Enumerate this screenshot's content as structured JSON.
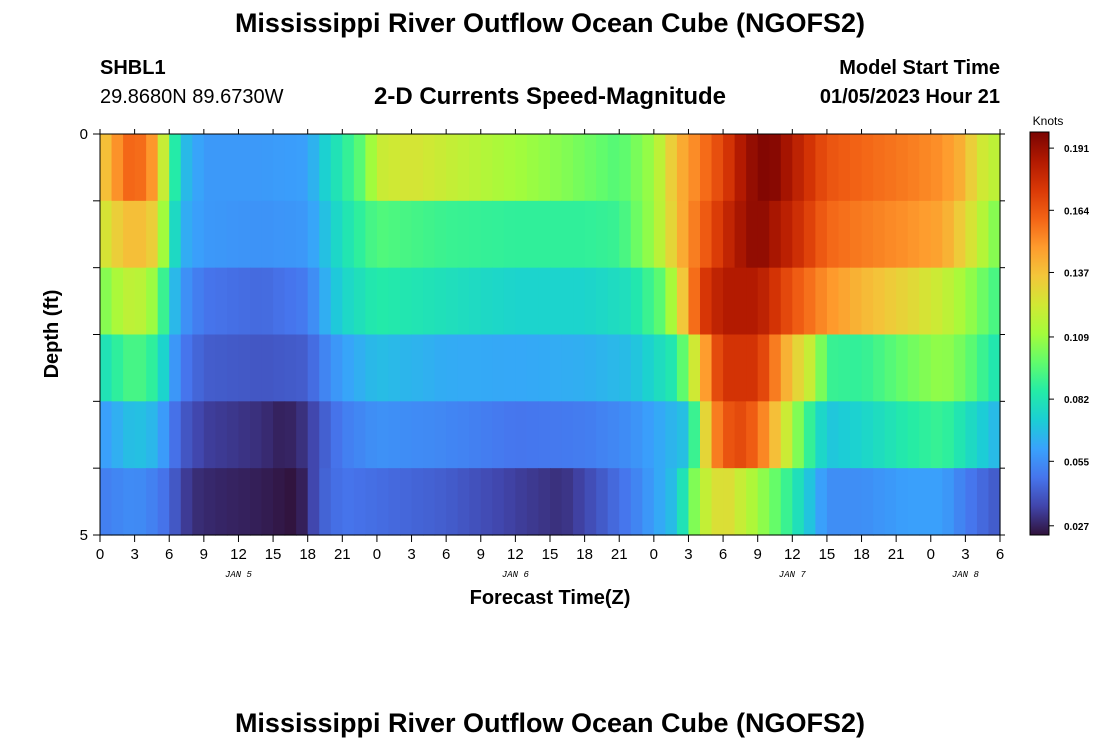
{
  "header": {
    "title": "Mississippi River Outflow Ocean Cube (NGOFS2)",
    "station_id": "SHBL1",
    "coordinates": "29.8680N  89.6730W",
    "chart_title": "2-D Currents Speed-Magnitude",
    "model_start_label": "Model Start Time",
    "model_start_value": "01/05/2023 Hour 21"
  },
  "footer": {
    "title": "Mississippi River Outflow Ocean Cube (NGOFS2)"
  },
  "chart_data": {
    "type": "heatmap",
    "xlabel": "Forecast Time(Z)",
    "ylabel": "Depth (ft)",
    "x_range_hours": [
      0,
      78
    ],
    "x_tick_labels": [
      "0",
      "3",
      "6",
      "9",
      "12",
      "15",
      "18",
      "21",
      "0",
      "3",
      "6",
      "9",
      "12",
      "15",
      "18",
      "21",
      "0",
      "3",
      "6",
      "9",
      "12",
      "15",
      "18",
      "21",
      "0",
      "3",
      "6"
    ],
    "date_labels": [
      {
        "label": "JAN 5",
        "hour": 12
      },
      {
        "label": "JAN 6",
        "hour": 36
      },
      {
        "label": "JAN 7",
        "hour": 60
      },
      {
        "label": "JAN 8",
        "hour": 75
      }
    ],
    "y_range": [
      0,
      5
    ],
    "y_tick_labels": [
      "0",
      "5"
    ],
    "colorbar": {
      "unit": "Knots",
      "min": 0.023,
      "max": 0.198,
      "tick_values": [
        0.191,
        0.164,
        0.137,
        0.109,
        0.082,
        0.055,
        0.027
      ]
    },
    "layer_keypoints": [
      [
        [
          0,
          0.135
        ],
        [
          1,
          0.14
        ],
        [
          2,
          0.16
        ],
        [
          4,
          0.158
        ],
        [
          5,
          0.14
        ],
        [
          6,
          0.1
        ],
        [
          7,
          0.07
        ],
        [
          9,
          0.058
        ],
        [
          14,
          0.058
        ],
        [
          18,
          0.06
        ],
        [
          19,
          0.07
        ],
        [
          21,
          0.085
        ],
        [
          23,
          0.1
        ],
        [
          24,
          0.12
        ],
        [
          27,
          0.125
        ],
        [
          30,
          0.12
        ],
        [
          35,
          0.112
        ],
        [
          40,
          0.105
        ],
        [
          45,
          0.095
        ],
        [
          48,
          0.11
        ],
        [
          50,
          0.14
        ],
        [
          54,
          0.17
        ],
        [
          56,
          0.19
        ],
        [
          58,
          0.198
        ],
        [
          60,
          0.185
        ],
        [
          63,
          0.165
        ],
        [
          66,
          0.16
        ],
        [
          70,
          0.155
        ],
        [
          73,
          0.15
        ],
        [
          75,
          0.14
        ],
        [
          76,
          0.125
        ],
        [
          78,
          0.115
        ]
      ],
      [
        [
          0,
          0.12
        ],
        [
          1,
          0.13
        ],
        [
          3,
          0.14
        ],
        [
          5,
          0.13
        ],
        [
          6,
          0.09
        ],
        [
          7,
          0.065
        ],
        [
          9,
          0.058
        ],
        [
          14,
          0.056
        ],
        [
          18,
          0.058
        ],
        [
          19,
          0.065
        ],
        [
          21,
          0.08
        ],
        [
          24,
          0.095
        ],
        [
          30,
          0.09
        ],
        [
          36,
          0.088
        ],
        [
          42,
          0.088
        ],
        [
          45,
          0.09
        ],
        [
          48,
          0.11
        ],
        [
          51,
          0.15
        ],
        [
          55,
          0.185
        ],
        [
          57,
          0.195
        ],
        [
          60,
          0.18
        ],
        [
          63,
          0.16
        ],
        [
          66,
          0.155
        ],
        [
          70,
          0.15
        ],
        [
          73,
          0.145
        ],
        [
          75,
          0.13
        ],
        [
          78,
          0.1
        ]
      ],
      [
        [
          0,
          0.1
        ],
        [
          1,
          0.11
        ],
        [
          3,
          0.12
        ],
        [
          5,
          0.105
        ],
        [
          6,
          0.075
        ],
        [
          7,
          0.058
        ],
        [
          9,
          0.048
        ],
        [
          14,
          0.045
        ],
        [
          18,
          0.05
        ],
        [
          19,
          0.06
        ],
        [
          21,
          0.075
        ],
        [
          24,
          0.085
        ],
        [
          30,
          0.08
        ],
        [
          36,
          0.075
        ],
        [
          42,
          0.075
        ],
        [
          46,
          0.08
        ],
        [
          49,
          0.1
        ],
        [
          52,
          0.17
        ],
        [
          54,
          0.185
        ],
        [
          57,
          0.185
        ],
        [
          60,
          0.165
        ],
        [
          63,
          0.15
        ],
        [
          66,
          0.14
        ],
        [
          70,
          0.13
        ],
        [
          73,
          0.12
        ],
        [
          75,
          0.11
        ],
        [
          78,
          0.09
        ]
      ],
      [
        [
          0,
          0.078
        ],
        [
          1,
          0.085
        ],
        [
          3,
          0.095
        ],
        [
          5,
          0.085
        ],
        [
          6,
          0.065
        ],
        [
          7,
          0.05
        ],
        [
          9,
          0.042
        ],
        [
          14,
          0.04
        ],
        [
          18,
          0.042
        ],
        [
          19,
          0.05
        ],
        [
          21,
          0.06
        ],
        [
          24,
          0.068
        ],
        [
          30,
          0.063
        ],
        [
          36,
          0.062
        ],
        [
          42,
          0.064
        ],
        [
          46,
          0.068
        ],
        [
          50,
          0.085
        ],
        [
          53,
          0.16
        ],
        [
          54,
          0.175
        ],
        [
          57,
          0.175
        ],
        [
          60,
          0.135
        ],
        [
          62,
          0.115
        ],
        [
          63,
          0.09
        ],
        [
          66,
          0.088
        ],
        [
          70,
          0.1
        ],
        [
          73,
          0.108
        ],
        [
          75,
          0.1
        ],
        [
          78,
          0.08
        ]
      ],
      [
        [
          0,
          0.058
        ],
        [
          1,
          0.062
        ],
        [
          3,
          0.07
        ],
        [
          5,
          0.065
        ],
        [
          6,
          0.052
        ],
        [
          7,
          0.042
        ],
        [
          9,
          0.034
        ],
        [
          14,
          0.03
        ],
        [
          16,
          0.026
        ],
        [
          18,
          0.032
        ],
        [
          19,
          0.04
        ],
        [
          21,
          0.05
        ],
        [
          24,
          0.056
        ],
        [
          30,
          0.053
        ],
        [
          36,
          0.048
        ],
        [
          42,
          0.05
        ],
        [
          46,
          0.055
        ],
        [
          51,
          0.07
        ],
        [
          53,
          0.15
        ],
        [
          55,
          0.17
        ],
        [
          57,
          0.16
        ],
        [
          59,
          0.13
        ],
        [
          61,
          0.095
        ],
        [
          63,
          0.07
        ],
        [
          66,
          0.075
        ],
        [
          70,
          0.085
        ],
        [
          73,
          0.09
        ],
        [
          75,
          0.08
        ],
        [
          78,
          0.065
        ]
      ],
      [
        [
          0,
          0.05
        ],
        [
          1,
          0.052
        ],
        [
          3,
          0.055
        ],
        [
          5,
          0.05
        ],
        [
          6,
          0.045
        ],
        [
          7,
          0.036
        ],
        [
          8,
          0.03
        ],
        [
          10,
          0.028
        ],
        [
          14,
          0.026
        ],
        [
          16,
          0.024
        ],
        [
          17,
          0.023
        ],
        [
          18,
          0.03
        ],
        [
          19,
          0.042
        ],
        [
          21,
          0.048
        ],
        [
          24,
          0.046
        ],
        [
          30,
          0.042
        ],
        [
          36,
          0.034
        ],
        [
          40,
          0.03
        ],
        [
          42,
          0.036
        ],
        [
          46,
          0.05
        ],
        [
          50,
          0.07
        ],
        [
          52,
          0.115
        ],
        [
          54,
          0.13
        ],
        [
          57,
          0.11
        ],
        [
          59,
          0.095
        ],
        [
          61,
          0.075
        ],
        [
          63,
          0.055
        ],
        [
          66,
          0.055
        ],
        [
          70,
          0.06
        ],
        [
          73,
          0.06
        ],
        [
          75,
          0.05
        ],
        [
          78,
          0.04
        ]
      ]
    ],
    "colormap": [
      "#30123b",
      "#4145ab",
      "#4675ed",
      "#39a2fc",
      "#1bcfd4",
      "#24eca6",
      "#61fc6c",
      "#a4fc3b",
      "#d1e834",
      "#f3c63a",
      "#fe9b2d",
      "#f36315",
      "#d93806",
      "#b11901",
      "#7a0402"
    ]
  }
}
